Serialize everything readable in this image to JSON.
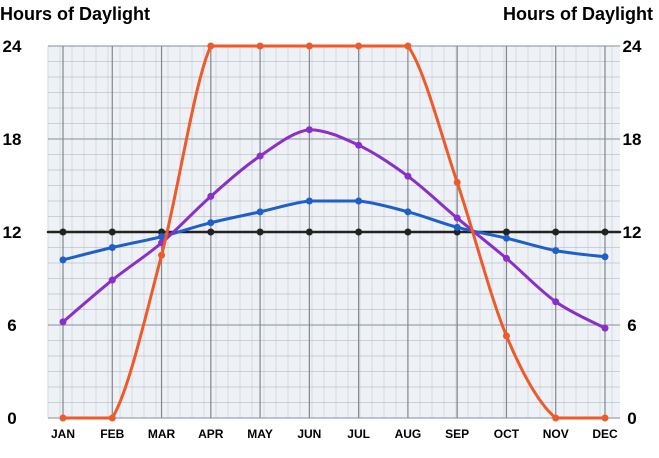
{
  "chart_data": {
    "type": "line",
    "title": "",
    "ylabel_left": "Hours of Daylight",
    "ylabel_right": "Hours of Daylight",
    "xlabel": "",
    "categories": [
      "JAN",
      "FEB",
      "MAR",
      "APR",
      "MAY",
      "JUN",
      "JUL",
      "AUG",
      "SEP",
      "OCT",
      "NOV",
      "DEC"
    ],
    "y_ticks": [
      0,
      6,
      12,
      18,
      24
    ],
    "ylim": [
      0,
      24
    ],
    "grid": true,
    "legend": "none",
    "series": [
      {
        "color": "#1f5fc9",
        "values": [
          10.2,
          11.0,
          11.7,
          12.6,
          13.3,
          14.0,
          14.0,
          13.3,
          12.3,
          11.6,
          10.8,
          10.4
        ]
      },
      {
        "color": "#8a2fc9",
        "values": [
          6.2,
          8.9,
          11.3,
          14.3,
          16.9,
          18.6,
          17.6,
          15.6,
          12.9,
          10.3,
          7.5,
          5.8
        ]
      },
      {
        "color": "#ee5a2a",
        "values": [
          0,
          0,
          10.5,
          24,
          24,
          24,
          24,
          24,
          15.2,
          5.3,
          0,
          0
        ]
      },
      {
        "color": "#222222",
        "values": [
          12,
          12,
          12,
          12,
          12,
          12,
          12,
          12,
          12,
          12,
          12,
          12
        ]
      }
    ]
  }
}
